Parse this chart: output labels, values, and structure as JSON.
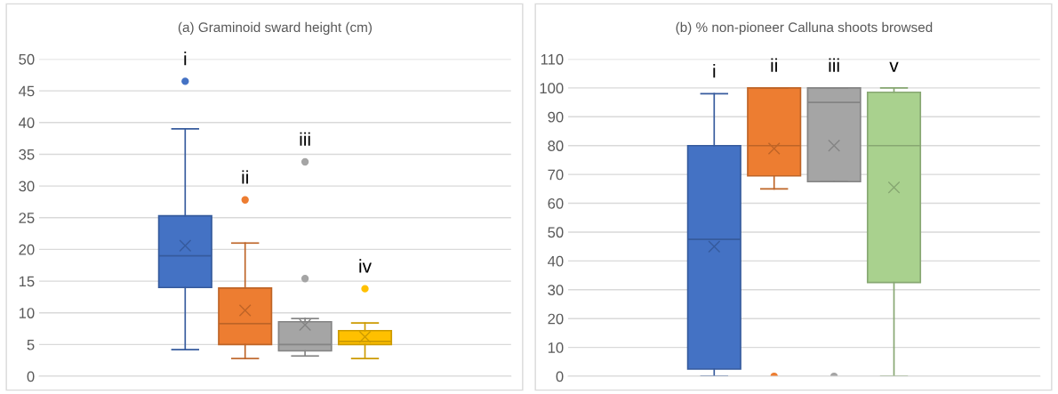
{
  "chart_data": [
    {
      "type": "box",
      "title": "(a) Graminoid sward height (cm)",
      "categories": [
        null
      ],
      "series": [
        {
          "color": "#4472c4",
          "boxes": [
            {
              "low": 4.2,
              "q1": 14,
              "median": 19,
              "q3": 25.3,
              "high": 39,
              "mean": 20.6,
              "outliers": [
                46.5
              ]
            }
          ]
        },
        {
          "color": "#ed7d31",
          "boxes": [
            {
              "low": 2.8,
              "q1": 5,
              "median": 8.3,
              "q3": 13.9,
              "high": 21,
              "mean": 10.4,
              "outliers": [
                27.8
              ]
            }
          ]
        },
        {
          "color": "#a5a5a5",
          "boxes": [
            {
              "low": 3.2,
              "q1": 4,
              "median": 5,
              "q3": 8.6,
              "high": 9.1,
              "mean": 8.1,
              "outliers": [
                15.4,
                33.8
              ]
            }
          ]
        },
        {
          "color": "#ffc000",
          "boxes": [
            {
              "low": 2.8,
              "q1": 5,
              "median": 5.5,
              "q3": 7.2,
              "high": 8.4,
              "mean": 6.2,
              "outliers": [
                13.8
              ]
            }
          ]
        }
      ],
      "ylim": [
        0,
        50
      ],
      "yticks": [
        0,
        5,
        10,
        15,
        20,
        25,
        30,
        35,
        40,
        45,
        50
      ],
      "grid": "y",
      "annotations": [
        "i",
        "ii",
        "iii",
        "iv"
      ]
    },
    {
      "type": "box",
      "title": "(b) % non-pioneer Calluna shoots browsed",
      "categories": [
        null
      ],
      "series": [
        {
          "color": "#4472c4",
          "boxes": [
            {
              "low": 0,
              "q1": 2.5,
              "median": 47.5,
              "q3": 80,
              "high": 98,
              "mean": 45
            }
          ]
        },
        {
          "color": "#ed7d31",
          "boxes": [
            {
              "low": 65,
              "q1": 69.5,
              "median": 80,
              "q3": 100,
              "high": 100,
              "mean": 79,
              "outliers": [
                0
              ]
            }
          ]
        },
        {
          "color": "#a5a5a5",
          "boxes": [
            {
              "low": 67.5,
              "q1": 67.5,
              "median": 95,
              "q3": 100,
              "high": 100,
              "mean": 80,
              "outliers": [
                0
              ]
            }
          ]
        },
        {
          "color": "#a9d18e",
          "boxes": [
            {
              "low": 0,
              "q1": 32.5,
              "median": 80,
              "q3": 98.5,
              "high": 100,
              "mean": 65.5
            }
          ]
        }
      ],
      "ylim": [
        0,
        110
      ],
      "yticks": [
        0,
        10,
        20,
        30,
        40,
        50,
        60,
        70,
        80,
        90,
        100,
        110
      ],
      "grid": "y",
      "annotations": [
        "i",
        "ii",
        "iii",
        "v"
      ]
    }
  ]
}
